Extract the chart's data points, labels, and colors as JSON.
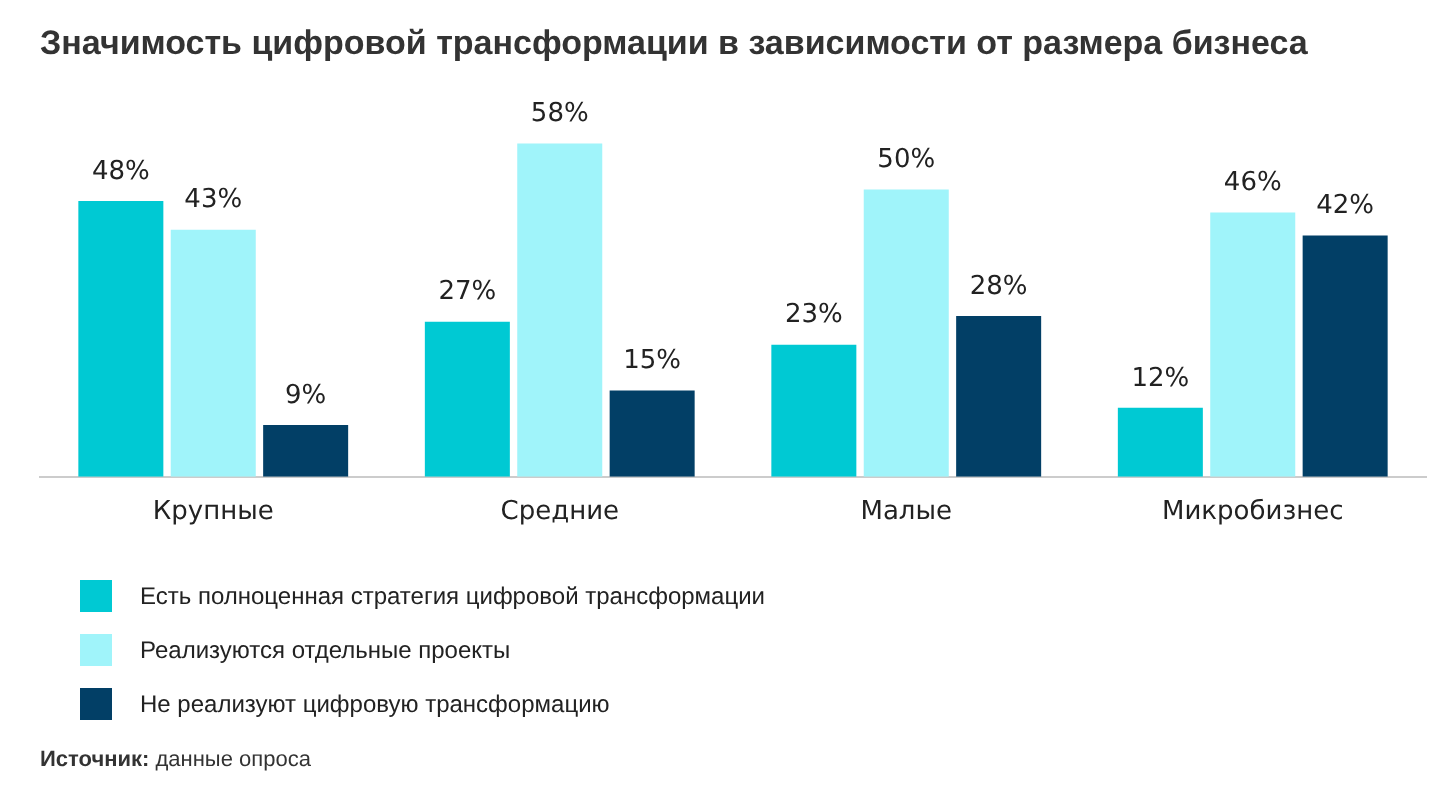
{
  "chart_data": {
    "type": "bar",
    "title": "Значимость цифровой трансформации в зависимости от размера бизнеса",
    "categories": [
      "Крупные",
      "Средние",
      "Малые",
      "Микробизнес"
    ],
    "series": [
      {
        "name": "Есть полноценная стратегия цифровой трансформации",
        "color": "#00c9d3",
        "values": [
          48,
          27,
          23,
          12
        ],
        "value_labels": [
          "48%",
          "27%",
          "23%",
          "12%"
        ]
      },
      {
        "name": "Реализуются отдельные проекты",
        "color": "#a0f4fa",
        "values": [
          43,
          58,
          50,
          46
        ],
        "value_labels": [
          "43%",
          "58%",
          "50%",
          "46%"
        ]
      },
      {
        "name": "Не реализуют цифровую трансформацию",
        "color": "#023f66",
        "values": [
          9,
          15,
          28,
          42
        ],
        "value_labels": [
          "9%",
          "15%",
          "28%",
          "42%"
        ]
      }
    ],
    "grid": false,
    "legend": "bottom",
    "annotations": [
      "Источник: данные опроса"
    ]
  }
}
